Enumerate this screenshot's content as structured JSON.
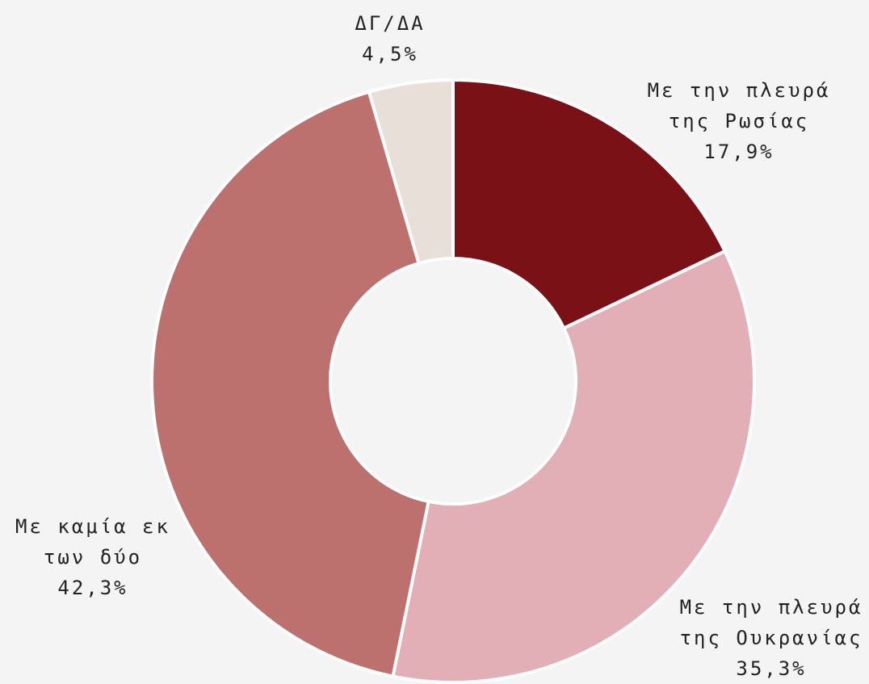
{
  "chart_data": {
    "type": "donut",
    "categories": [
      "Με την πλευρά της Ρωσίας",
      "Με την πλευρά της Ουκρανίας",
      "Με καμία εκ των δύο",
      "ΔΓ/ΔΑ"
    ],
    "values": [
      17.9,
      35.3,
      42.3,
      4.5
    ],
    "value_labels": [
      "17,9%",
      "35,3%",
      "42,3%",
      "4,5%"
    ],
    "colors": [
      "#7a1116",
      "#e2afb6",
      "#bc716f",
      "#e8e0d8"
    ]
  }
}
